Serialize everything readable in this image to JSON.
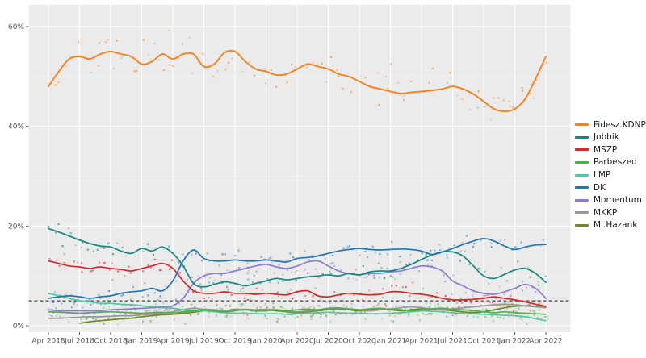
{
  "figure": {
    "background": "#ffffff",
    "panel_background": "#ebebeb",
    "grid_color": "#ffffff",
    "axis_text_color": "#555555",
    "tick_color": "#333333"
  },
  "legend": {
    "position": "right",
    "items": [
      "Fidesz.KDNP",
      "Jobbik",
      "MSZP",
      "Parbeszed",
      "LMP",
      "DK",
      "Momentum",
      "MKKP",
      "Mi.Hazank"
    ]
  },
  "chart_data": {
    "type": "scatter",
    "title": "",
    "xlabel": "",
    "ylabel": "",
    "description": "Hungarian party opinion polling: scatter = individual polls, thick lines = smoothed monthly trend, black dashed line = 5% threshold",
    "x_unit": "month",
    "x_range_note": "49 monthly values per series, Apr 2018 through Apr 2022",
    "x_tick_labels": [
      "Apr 2018",
      "Jul 2018",
      "Oct 2018",
      "Jan 2019",
      "Apr 2019",
      "Jul 2019",
      "Oct 2019",
      "Jan 2020",
      "Apr 2020",
      "Jul 2020",
      "Oct 2020",
      "Jan 2021",
      "Apr 2021",
      "Jul 2021",
      "Oct 2021",
      "Jan 2022",
      "Apr 2022"
    ],
    "y_tick_labels": [
      "0%",
      "20%",
      "40%",
      "60%"
    ],
    "y_ticks_percent": [
      0,
      20,
      40,
      60
    ],
    "ylim": [
      -1.3,
      65.5
    ],
    "grid": true,
    "threshold_line": {
      "value_percent": 5,
      "style": "dashed",
      "color": "#1a1a1a"
    },
    "series": [
      {
        "name": "Fidesz.KDNP",
        "color": "#F5821F",
        "scatter_spread": 3.3,
        "values": [
          48,
          51,
          53.5,
          54,
          53.5,
          54.5,
          55,
          54.5,
          54,
          52.5,
          53,
          54.5,
          53.5,
          54.5,
          54.5,
          52,
          52.5,
          54.8,
          55,
          53,
          51.5,
          51,
          50.3,
          50.5,
          51.5,
          52.5,
          52,
          51.5,
          50.5,
          50,
          49,
          48,
          47.5,
          47,
          46.6,
          46.8,
          47,
          47.2,
          47.5,
          48,
          47.5,
          46.5,
          45,
          43.5,
          43,
          43.5,
          45.5,
          49.5,
          54
        ]
      },
      {
        "name": "Jobbik",
        "color": "#13897E",
        "scatter_spread": 1.6,
        "values": [
          19.5,
          18.8,
          18,
          17.2,
          16.5,
          16,
          15.8,
          15,
          14.5,
          15.5,
          15,
          15.8,
          14.5,
          12,
          8.5,
          7.8,
          8.3,
          8.8,
          8.5,
          8,
          8.5,
          9,
          9.5,
          9.2,
          9.5,
          9.8,
          10,
          10.2,
          10,
          10.5,
          10.2,
          10.8,
          11,
          11,
          11.5,
          12.3,
          13.3,
          14.2,
          14.8,
          14.8,
          14,
          12,
          10,
          9.5,
          10.3,
          11.2,
          11.5,
          10.5,
          8.7
        ]
      },
      {
        "name": "MSZP",
        "color": "#D62728",
        "scatter_spread": 1.5,
        "values": [
          13,
          12.5,
          12,
          11.8,
          11.5,
          11.8,
          11.5,
          11.3,
          11,
          11.5,
          12,
          12.5,
          11.5,
          9,
          7,
          6.5,
          6.5,
          6.8,
          6.5,
          6.5,
          6.3,
          6.5,
          6.3,
          6.2,
          6.8,
          7,
          6,
          5.8,
          6.2,
          6.5,
          6.3,
          6.2,
          6.3,
          6.8,
          6.8,
          6.5,
          6.3,
          6,
          5.5,
          5.2,
          5.2,
          5.3,
          5.5,
          5.8,
          5.5,
          5.2,
          4.8,
          4.3,
          3.9
        ]
      },
      {
        "name": "Parbeszed",
        "color": "#4DAF4A",
        "scatter_spread": 1.3,
        "values": [
          2.8,
          2.7,
          2.6,
          2.5,
          2.6,
          2.7,
          2.8,
          2.7,
          2.6,
          2.5,
          2.6,
          2.7,
          2.5,
          2.8,
          3,
          3.2,
          3,
          2.8,
          3,
          3.2,
          3,
          3,
          3.2,
          3,
          3.2,
          3.3,
          3.2,
          3.4,
          3.5,
          3.3,
          3.2,
          3.4,
          3.5,
          3.3,
          3.2,
          3,
          3.2,
          3.4,
          3.5,
          3.3,
          3.2,
          3,
          2.8,
          2.6,
          2.8,
          2.6,
          2.5,
          2.4,
          2.3
        ]
      },
      {
        "name": "LMP",
        "color": "#52C5A2",
        "scatter_spread": 1.3,
        "values": [
          6.5,
          6,
          5.5,
          5,
          4.8,
          4.5,
          4.5,
          4.3,
          4.2,
          4,
          3.8,
          3.6,
          3.5,
          3.2,
          3,
          3,
          2.8,
          2.6,
          2.5,
          2.5,
          2.4,
          2.4,
          2.4,
          2.3,
          2.4,
          2.5,
          2.6,
          2.7,
          2.6,
          2.5,
          2.5,
          2.4,
          2.4,
          2.5,
          2.6,
          2.8,
          3,
          2.9,
          2.8,
          2.6,
          2.5,
          2.4,
          2.3,
          2.2,
          2.1,
          2,
          1.8,
          1.4,
          1
        ]
      },
      {
        "name": "DK",
        "color": "#1F77B4",
        "scatter_spread": 1.6,
        "values": [
          5.5,
          5.8,
          6,
          5.8,
          5.5,
          5.8,
          6,
          6.5,
          6.8,
          7,
          7.5,
          7,
          9,
          13,
          15.2,
          13.5,
          13,
          13,
          13.2,
          13,
          13,
          13.2,
          13,
          12.8,
          13.5,
          13.7,
          14,
          14.5,
          15,
          15.3,
          15.5,
          15.3,
          15.2,
          15.3,
          15.4,
          15.3,
          15,
          14.3,
          14.8,
          15.5,
          16.3,
          17,
          17.5,
          17,
          16,
          15.3,
          15.8,
          16.2,
          16.3
        ]
      },
      {
        "name": "Momentum",
        "color": "#8C7BD3",
        "scatter_spread": 1.5,
        "values": [
          3.2,
          3,
          3,
          3,
          3,
          3,
          3.2,
          3.3,
          3.4,
          3.5,
          3.6,
          3.8,
          4,
          5.5,
          8.5,
          10,
          10.5,
          10.5,
          11,
          11.5,
          12,
          12.3,
          11.8,
          11.5,
          12,
          12.8,
          13,
          12,
          11,
          10.4,
          10.2,
          10.5,
          10.5,
          10.8,
          11,
          11.5,
          12,
          11.8,
          11,
          9,
          8,
          7,
          6.5,
          6.3,
          6.8,
          7.5,
          8.3,
          7.5,
          5.5
        ]
      },
      {
        "name": "MKKP",
        "color": "#979797",
        "scatter_spread": 1.2,
        "values": [
          1.5,
          1.5,
          1.6,
          1.7,
          1.8,
          1.8,
          1.9,
          2,
          2,
          2.2,
          2.3,
          2.5,
          2.8,
          3.2,
          3.5,
          3.3,
          3.2,
          3,
          3.2,
          3.3,
          3.2,
          3.3,
          3.2,
          3,
          2.8,
          3,
          3.2,
          3.5,
          3.6,
          3.4,
          3.2,
          3,
          3.2,
          3.4,
          3.6,
          3.8,
          3.6,
          3.4,
          3.2,
          3.4,
          3.6,
          3.8,
          4,
          4.2,
          4.3,
          4.2,
          4,
          3.8,
          3.6
        ]
      },
      {
        "name": "Mi.Hazank",
        "color": "#6E8B1E",
        "scatter_spread": 1.2,
        "values": [
          null,
          null,
          null,
          0.5,
          0.8,
          1,
          1.2,
          1.4,
          1.5,
          1.8,
          2,
          2.2,
          2.3,
          2.5,
          2.7,
          3,
          3.2,
          3,
          3.3,
          3.2,
          3,
          3.2,
          3,
          2.8,
          2.6,
          2.8,
          3,
          3.2,
          3.4,
          3.2,
          3,
          3.2,
          3.3,
          3.2,
          3,
          3.2,
          3.4,
          3.3,
          3.2,
          3,
          2.8,
          2.6,
          2.8,
          3.2,
          3.6,
          3.9,
          4,
          3.9,
          3.9
        ]
      }
    ]
  }
}
